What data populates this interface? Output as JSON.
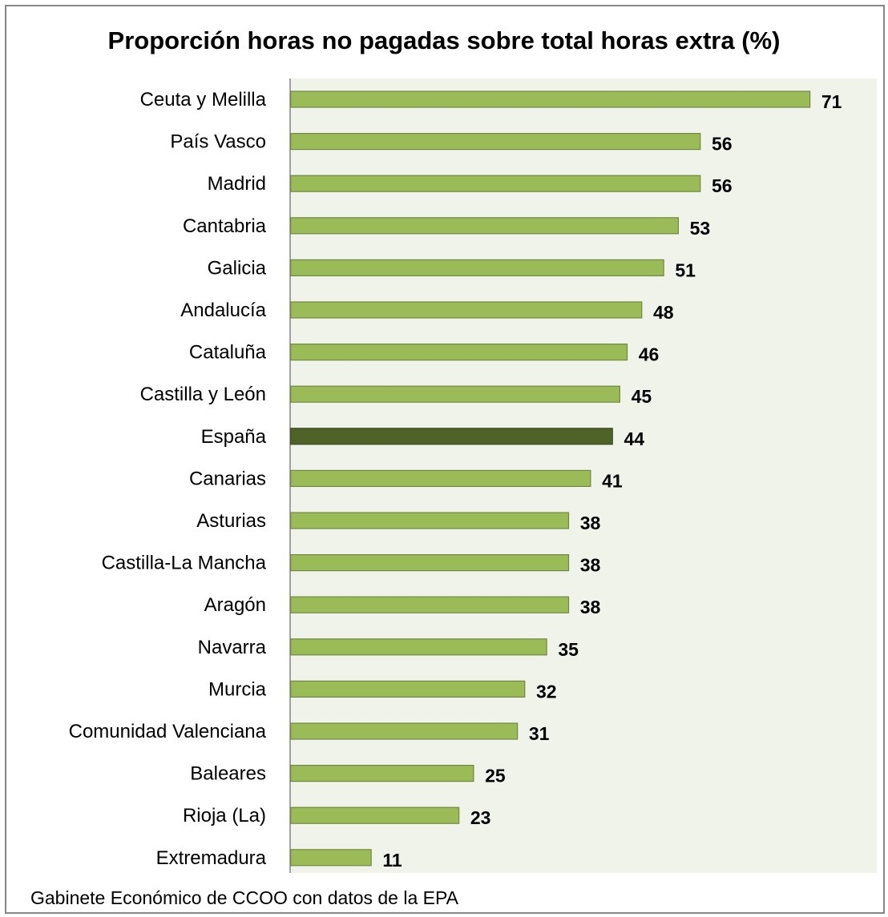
{
  "chart_data": {
    "type": "bar",
    "orientation": "horizontal",
    "title": "Proporción horas no pagadas sobre total horas extra (%)",
    "xlabel": "",
    "ylabel": "",
    "categories": [
      "Ceuta y Melilla",
      "País Vasco",
      "Madrid",
      "Cantabria",
      "Galicia",
      "Andalucía",
      "Cataluña",
      "Castilla y León",
      "España",
      "Canarias",
      "Asturias",
      "Castilla-La Mancha",
      "Aragón",
      "Navarra",
      "Murcia",
      "Comunidad Valenciana",
      "Baleares",
      "Rioja (La)",
      "Extremadura"
    ],
    "values": [
      71,
      56,
      56,
      53,
      51,
      48,
      46,
      45,
      44,
      41,
      38,
      38,
      38,
      35,
      32,
      31,
      25,
      23,
      11
    ],
    "highlight_category": "España",
    "xlim": [
      0,
      80
    ],
    "grid": false,
    "legend": "none",
    "data_labels": true
  },
  "source": "Gabinete Económico de CCOO con datos de la EPA",
  "colors": {
    "bar_fill": "#9bbb59",
    "bar_stroke": "#71893f",
    "highlight_fill": "#4f6228",
    "highlight_stroke": "#3b4a1e",
    "plot_background": "#eff3ea",
    "axis": "#868686",
    "frame": "#868686"
  }
}
